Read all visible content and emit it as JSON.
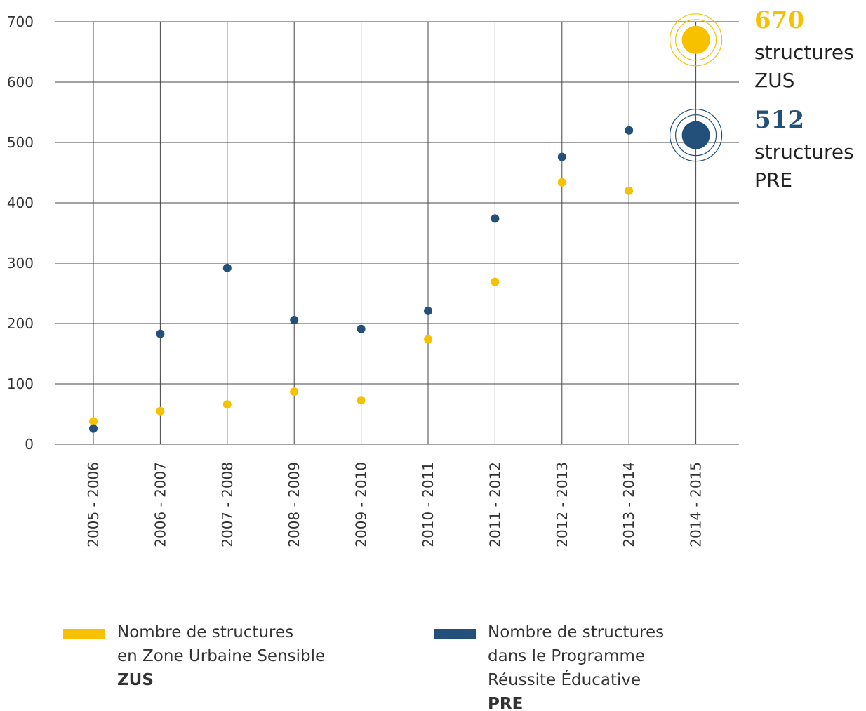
{
  "chart_data": {
    "type": "scatter",
    "categories": [
      "2005 - 2006",
      "2006 - 2007",
      "2007 - 2008",
      "2008 - 2009",
      "2009 - 2010",
      "2010 - 2011",
      "2011 - 2012",
      "2012 - 2013",
      "2013 - 2014",
      "2014 - 2015"
    ],
    "series": [
      {
        "name": [
          "Nombre de structures",
          "en Zone Urbaine Sensible"
        ],
        "abbr": "ZUS",
        "color": "#f8c100",
        "values": [
          38,
          55,
          66,
          87,
          73,
          174,
          269,
          434,
          420,
          670
        ],
        "value_labels": [
          null,
          null,
          null,
          null,
          null,
          null,
          null,
          null,
          null,
          "670"
        ],
        "annotation": [
          "structures",
          "ZUS"
        ]
      },
      {
        "name": [
          "Nombre de structures",
          "dans le Programme",
          "Réussite Éducative"
        ],
        "abbr": "PRE",
        "color": "#23507a",
        "values": [
          26,
          183,
          292,
          206,
          191,
          221,
          374,
          476,
          520,
          512
        ],
        "value_labels": [
          null,
          null,
          null,
          null,
          null,
          null,
          null,
          null,
          null,
          "512"
        ],
        "annotation": [
          "structures",
          "PRE"
        ]
      }
    ],
    "ylim": [
      0,
      700
    ],
    "yticks": [
      0,
      100,
      200,
      300,
      400,
      500,
      600,
      700
    ],
    "grid": true
  }
}
